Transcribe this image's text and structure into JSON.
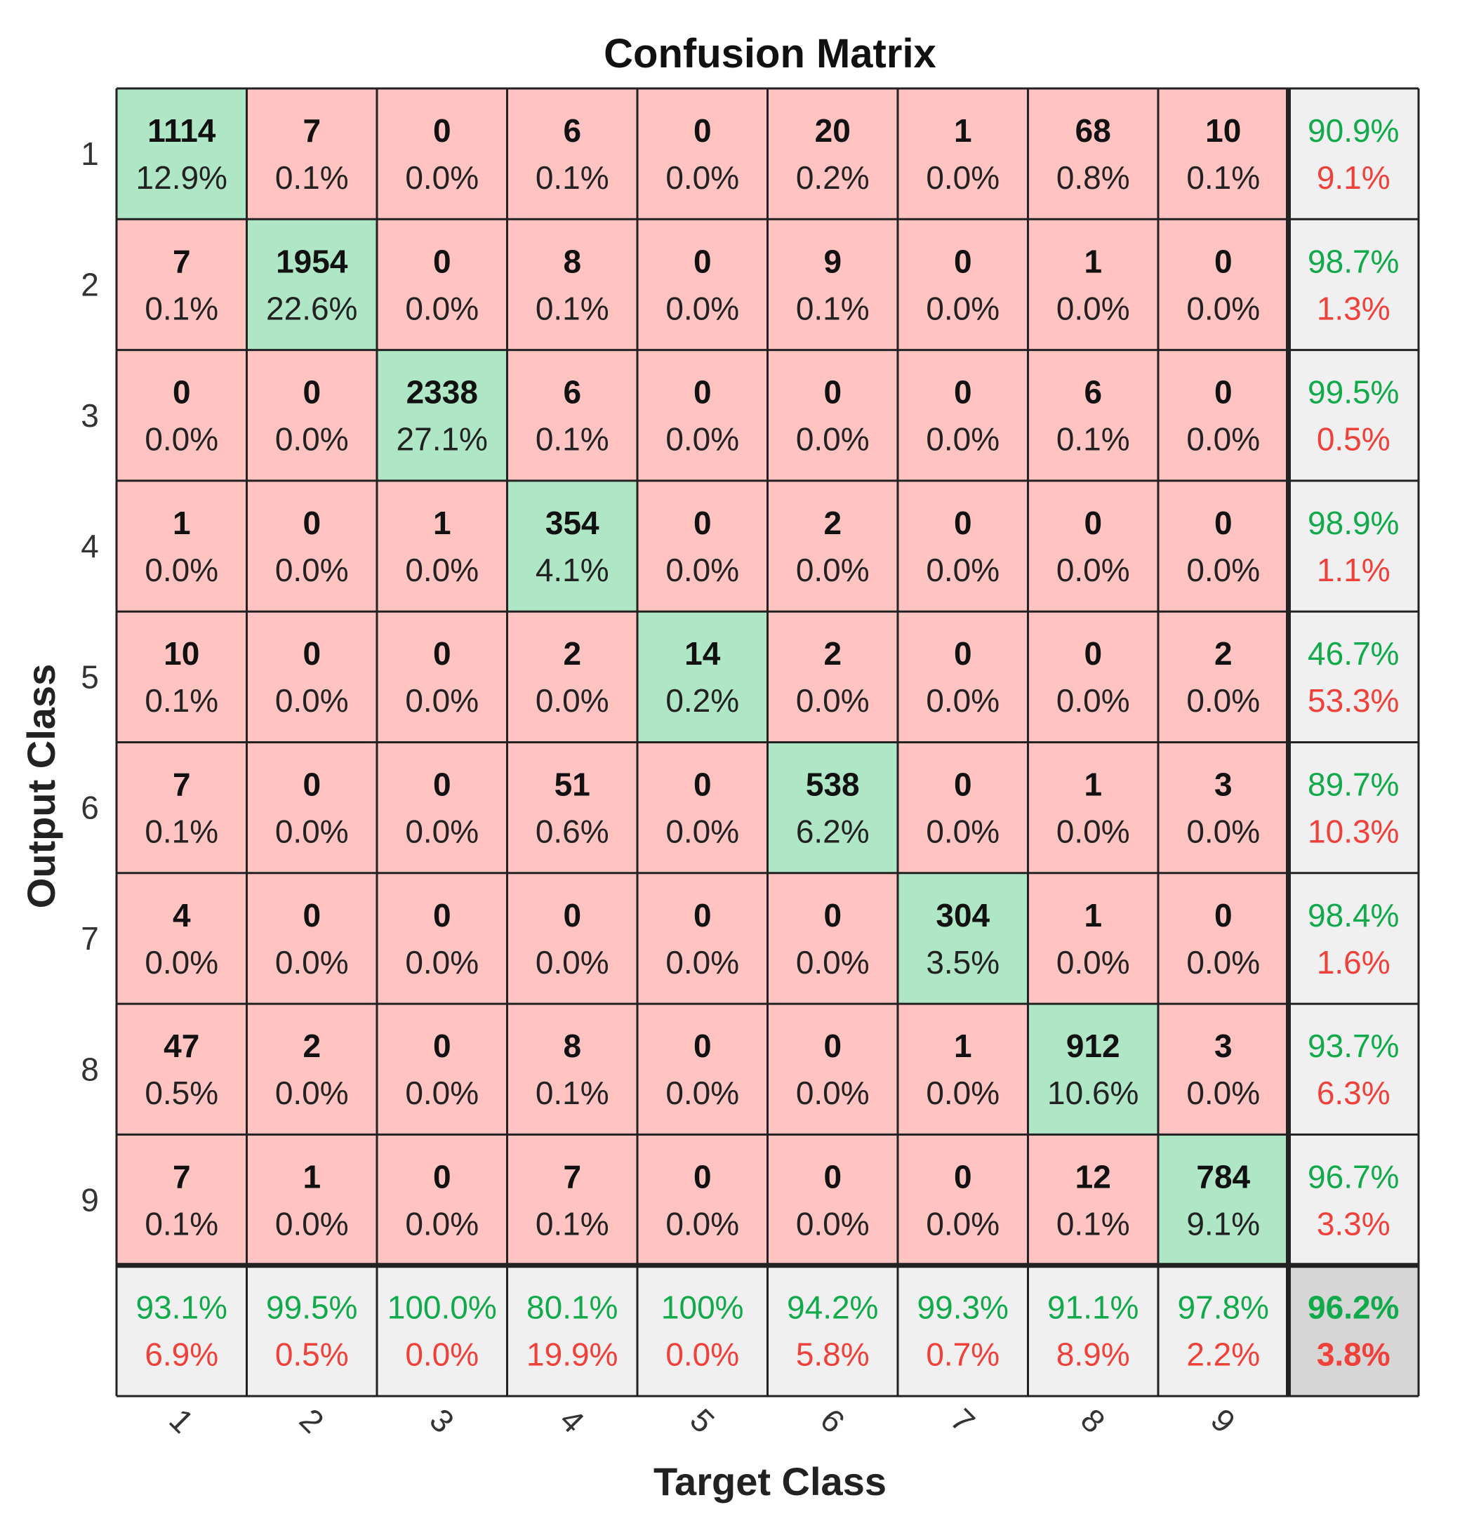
{
  "chart_data": {
    "type": "heatmap",
    "title": "Confusion Matrix",
    "xlabel": "Target Class",
    "ylabel": "Output Class",
    "x_tick_labels": [
      "1",
      "2",
      "3",
      "4",
      "5",
      "6",
      "7",
      "8",
      "9"
    ],
    "y_tick_labels": [
      "1",
      "2",
      "3",
      "4",
      "5",
      "6",
      "7",
      "8",
      "9"
    ],
    "matrix": [
      [
        1114,
        7,
        0,
        6,
        0,
        20,
        1,
        68,
        10
      ],
      [
        7,
        1954,
        0,
        8,
        0,
        9,
        0,
        1,
        0
      ],
      [
        0,
        0,
        2338,
        6,
        0,
        0,
        0,
        6,
        0
      ],
      [
        1,
        0,
        1,
        354,
        0,
        2,
        0,
        0,
        0
      ],
      [
        10,
        0,
        0,
        2,
        14,
        2,
        0,
        0,
        2
      ],
      [
        7,
        0,
        0,
        51,
        0,
        538,
        0,
        1,
        3
      ],
      [
        4,
        0,
        0,
        0,
        0,
        0,
        304,
        1,
        0
      ],
      [
        47,
        2,
        0,
        8,
        0,
        0,
        1,
        912,
        3
      ],
      [
        7,
        1,
        0,
        7,
        0,
        0,
        0,
        12,
        784
      ]
    ],
    "matrix_percent": [
      [
        "12.9%",
        "0.1%",
        "0.0%",
        "0.1%",
        "0.0%",
        "0.2%",
        "0.0%",
        "0.8%",
        "0.1%"
      ],
      [
        "0.1%",
        "22.6%",
        "0.0%",
        "0.1%",
        "0.0%",
        "0.1%",
        "0.0%",
        "0.0%",
        "0.0%"
      ],
      [
        "0.0%",
        "0.0%",
        "27.1%",
        "0.1%",
        "0.0%",
        "0.0%",
        "0.0%",
        "0.1%",
        "0.0%"
      ],
      [
        "0.0%",
        "0.0%",
        "0.0%",
        "4.1%",
        "0.0%",
        "0.0%",
        "0.0%",
        "0.0%",
        "0.0%"
      ],
      [
        "0.1%",
        "0.0%",
        "0.0%",
        "0.0%",
        "0.2%",
        "0.0%",
        "0.0%",
        "0.0%",
        "0.0%"
      ],
      [
        "0.1%",
        "0.0%",
        "0.0%",
        "0.6%",
        "0.0%",
        "6.2%",
        "0.0%",
        "0.0%",
        "0.0%"
      ],
      [
        "0.0%",
        "0.0%",
        "0.0%",
        "0.0%",
        "0.0%",
        "0.0%",
        "3.5%",
        "0.0%",
        "0.0%"
      ],
      [
        "0.5%",
        "0.0%",
        "0.0%",
        "0.1%",
        "0.0%",
        "0.0%",
        "0.0%",
        "10.6%",
        "0.0%"
      ],
      [
        "0.1%",
        "0.0%",
        "0.0%",
        "0.1%",
        "0.0%",
        "0.0%",
        "0.0%",
        "0.1%",
        "9.1%"
      ]
    ],
    "row_summary": [
      {
        "correct": "90.9%",
        "wrong": "9.1%"
      },
      {
        "correct": "98.7%",
        "wrong": "1.3%"
      },
      {
        "correct": "99.5%",
        "wrong": "0.5%"
      },
      {
        "correct": "98.9%",
        "wrong": "1.1%"
      },
      {
        "correct": "46.7%",
        "wrong": "53.3%"
      },
      {
        "correct": "89.7%",
        "wrong": "10.3%"
      },
      {
        "correct": "98.4%",
        "wrong": "1.6%"
      },
      {
        "correct": "93.7%",
        "wrong": "6.3%"
      },
      {
        "correct": "96.7%",
        "wrong": "3.3%"
      }
    ],
    "column_summary": [
      {
        "correct": "93.1%",
        "wrong": "6.9%"
      },
      {
        "correct": "99.5%",
        "wrong": "0.5%"
      },
      {
        "correct": "100.0%",
        "wrong": "0.0%"
      },
      {
        "correct": "80.1%",
        "wrong": "19.9%"
      },
      {
        "correct": "100%",
        "wrong": "0.0%"
      },
      {
        "correct": "94.2%",
        "wrong": "5.8%"
      },
      {
        "correct": "99.3%",
        "wrong": "0.7%"
      },
      {
        "correct": "91.1%",
        "wrong": "8.9%"
      },
      {
        "correct": "97.8%",
        "wrong": "2.2%"
      }
    ],
    "overall": {
      "correct": "96.2%",
      "wrong": "3.8%"
    },
    "colors": {
      "diagonal": "#aee6c6",
      "off_diagonal": "#ffc3c1",
      "summary": "#f0f0f0",
      "overall": "#d6d6d6",
      "grid": "#222222",
      "good_text": "#11aa4a",
      "bad_text": "#f0403a"
    }
  }
}
